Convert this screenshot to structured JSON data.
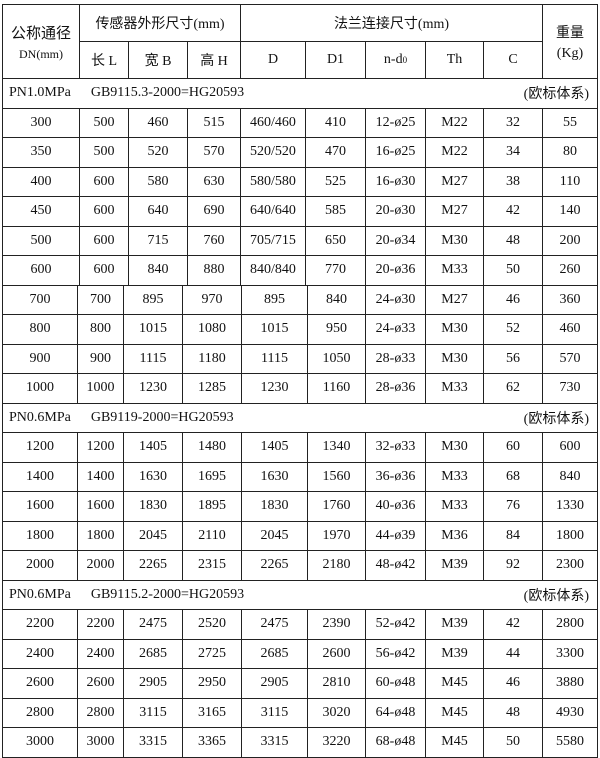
{
  "header": {
    "dn_label_1": "公称通径",
    "dn_label_2": "DN(mm)",
    "sensor_group": "传感器外形尺寸(mm)",
    "flange_group": "法兰连接尺寸(mm)",
    "weight_label_1": "重量",
    "weight_label_2": "(Kg)",
    "columns": [
      "长 L",
      "宽 B",
      "高 H",
      "D",
      "D1",
      "n-d",
      "Th",
      "C"
    ],
    "nd_subscript": "0"
  },
  "sections": [
    {
      "pressure": "PN1.0MPa",
      "standard": "GB9115.3-2000=HG20593",
      "system": "(欧标体系)",
      "rows": [
        [
          "300",
          "500",
          "460",
          "515",
          "460/460",
          "410",
          "12-ø25",
          "M22",
          "32",
          "55"
        ],
        [
          "350",
          "500",
          "520",
          "570",
          "520/520",
          "470",
          "16-ø25",
          "M22",
          "34",
          "80"
        ],
        [
          "400",
          "600",
          "580",
          "630",
          "580/580",
          "525",
          "16-ø30",
          "M27",
          "38",
          "110"
        ],
        [
          "450",
          "600",
          "640",
          "690",
          "640/640",
          "585",
          "20-ø30",
          "M27",
          "42",
          "140"
        ],
        [
          "500",
          "600",
          "715",
          "760",
          "705/715",
          "650",
          "20-ø34",
          "M30",
          "48",
          "200"
        ],
        [
          "600",
          "600",
          "840",
          "880",
          "840/840",
          "770",
          "20-ø36",
          "M33",
          "50",
          "260"
        ],
        [
          "700",
          "700",
          "895",
          "970",
          "895",
          "840",
          "24-ø30",
          "M27",
          "46",
          "360"
        ],
        [
          "800",
          "800",
          "1015",
          "1080",
          "1015",
          "950",
          "24-ø33",
          "M30",
          "52",
          "460"
        ],
        [
          "900",
          "900",
          "1115",
          "1180",
          "1115",
          "1050",
          "28-ø33",
          "M30",
          "56",
          "570"
        ],
        [
          "1000",
          "1000",
          "1230",
          "1285",
          "1230",
          "1160",
          "28-ø36",
          "M33",
          "62",
          "730"
        ]
      ]
    },
    {
      "pressure": "PN0.6MPa",
      "standard": "GB9119-2000=HG20593",
      "system": "(欧标体系)",
      "rows": [
        [
          "1200",
          "1200",
          "1405",
          "1480",
          "1405",
          "1340",
          "32-ø33",
          "M30",
          "60",
          "600"
        ],
        [
          "1400",
          "1400",
          "1630",
          "1695",
          "1630",
          "1560",
          "36-ø36",
          "M33",
          "68",
          "840"
        ],
        [
          "1600",
          "1600",
          "1830",
          "1895",
          "1830",
          "1760",
          "40-ø36",
          "M33",
          "76",
          "1330"
        ],
        [
          "1800",
          "1800",
          "2045",
          "2110",
          "2045",
          "1970",
          "44-ø39",
          "M36",
          "84",
          "1800"
        ],
        [
          "2000",
          "2000",
          "2265",
          "2315",
          "2265",
          "2180",
          "48-ø42",
          "M39",
          "92",
          "2300"
        ]
      ]
    },
    {
      "pressure": "PN0.6MPa",
      "standard": "GB9115.2-2000=HG20593",
      "system": "(欧标体系)",
      "rows": [
        [
          "2200",
          "2200",
          "2475",
          "2520",
          "2475",
          "2390",
          "52-ø42",
          "M39",
          "42",
          "2800"
        ],
        [
          "2400",
          "2400",
          "2685",
          "2725",
          "2685",
          "2600",
          "56-ø42",
          "M39",
          "44",
          "3300"
        ],
        [
          "2600",
          "2600",
          "2905",
          "2950",
          "2905",
          "2810",
          "60-ø48",
          "M45",
          "46",
          "3880"
        ],
        [
          "2800",
          "2800",
          "3115",
          "3165",
          "3115",
          "3020",
          "64-ø48",
          "M45",
          "48",
          "4930"
        ],
        [
          "3000",
          "3000",
          "3315",
          "3365",
          "3315",
          "3220",
          "68-ø48",
          "M45",
          "50",
          "5580"
        ]
      ]
    }
  ]
}
